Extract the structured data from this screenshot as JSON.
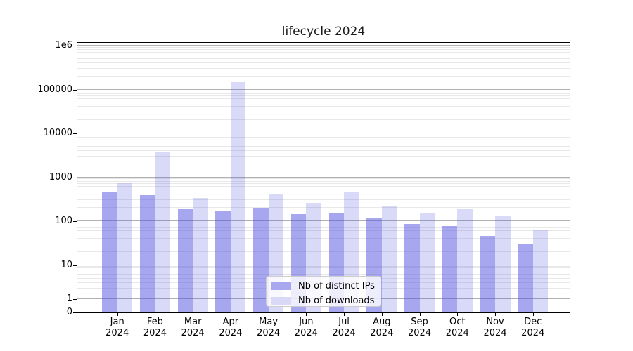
{
  "chart_data": {
    "type": "bar",
    "title": "lifecycle 2024",
    "year": "2024",
    "categories": [
      "Jan",
      "Feb",
      "Mar",
      "Apr",
      "May",
      "Jun",
      "Jul",
      "Aug",
      "Sep",
      "Oct",
      "Nov",
      "Dec"
    ],
    "series": [
      {
        "name": "Nb of distinct IPs",
        "color": "rgba(80,80,225,0.5)",
        "legend_color": "#a8a8f0",
        "values": [
          470,
          390,
          190,
          170,
          195,
          145,
          148,
          115,
          85,
          78,
          46,
          30
        ]
      },
      {
        "name": "Nb of downloads",
        "color": "rgba(80,80,225,0.22)",
        "legend_color": "#d9d9f7",
        "values": [
          740,
          3700,
          340,
          145000,
          400,
          260,
          470,
          220,
          155,
          185,
          135,
          64
        ]
      }
    ],
    "yscale": "symlog",
    "ylim": [
      0,
      1000000
    ],
    "yticks": [
      {
        "value": 0,
        "label": "0"
      },
      {
        "value": 1,
        "label": "1"
      },
      {
        "value": 10,
        "label": "10"
      },
      {
        "value": 100,
        "label": "100"
      },
      {
        "value": 1000,
        "label": "1000"
      },
      {
        "value": 10000,
        "label": "10000"
      },
      {
        "value": 100000,
        "label": "100000"
      },
      {
        "value": 1000000,
        "label": "1e6"
      }
    ],
    "grid": true,
    "legend_position": "lower center",
    "colors": {
      "major_grid": "#b0b0b0",
      "minor_grid": "#e8e8e8",
      "axis": "#000000",
      "background": "#ffffff"
    }
  }
}
